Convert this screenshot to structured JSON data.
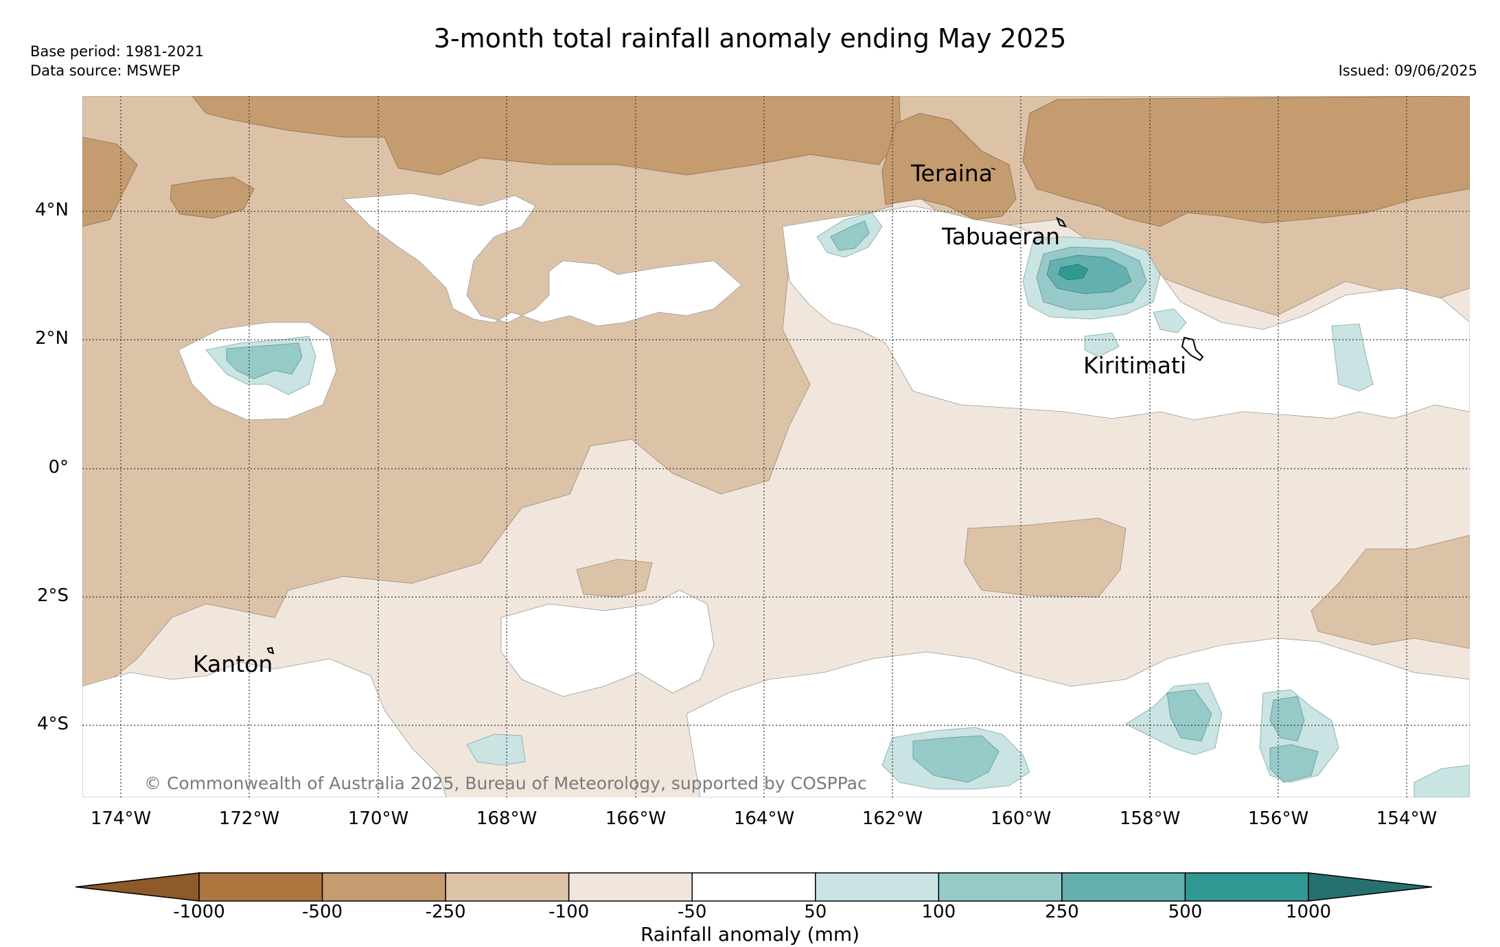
{
  "header": {
    "title": "3-month total rainfall anomaly ending May 2025",
    "base_period": "Base period: 1981-2021",
    "data_source": "Data source: MSWEP",
    "issued": "Issued: 09/06/2025"
  },
  "map": {
    "lat_labels": [
      "4°N",
      "2°N",
      "0°",
      "2°S",
      "4°S"
    ],
    "lon_labels": [
      "174°W",
      "172°W",
      "170°W",
      "168°W",
      "166°W",
      "164°W",
      "162°W",
      "160°W",
      "158°W",
      "156°W",
      "154°W"
    ],
    "places": [
      "Teraina",
      "Tabuaeran",
      "Kiritimati",
      "Kanton"
    ],
    "copyright": "© Commonwealth of Australia 2025, Bureau of Meteorology, supported by COSPPac"
  },
  "colorbar": {
    "title": "Rainfall anomaly (mm)",
    "ticks": [
      "-1000",
      "-500",
      "-250",
      "-100",
      "-50",
      "50",
      "100",
      "250",
      "500",
      "1000"
    ],
    "colors": [
      "#8c5a2b",
      "#ad763f",
      "#c49c70",
      "#dcc3a8",
      "#f0e6dc",
      "#ffffff",
      "#c9e4e2",
      "#96cac8",
      "#64b0ae",
      "#319893",
      "#26716f"
    ]
  },
  "palette": {
    "very_dry": "#c49c70",
    "dry": "#dcc3a8",
    "slightly_dry": "#f0e6dc",
    "normal": "#ffffff",
    "slightly_wet": "#c9e4e2",
    "wet": "#96cac8",
    "very_wet": "#64b0ae",
    "extremely_wet": "#319893"
  }
}
